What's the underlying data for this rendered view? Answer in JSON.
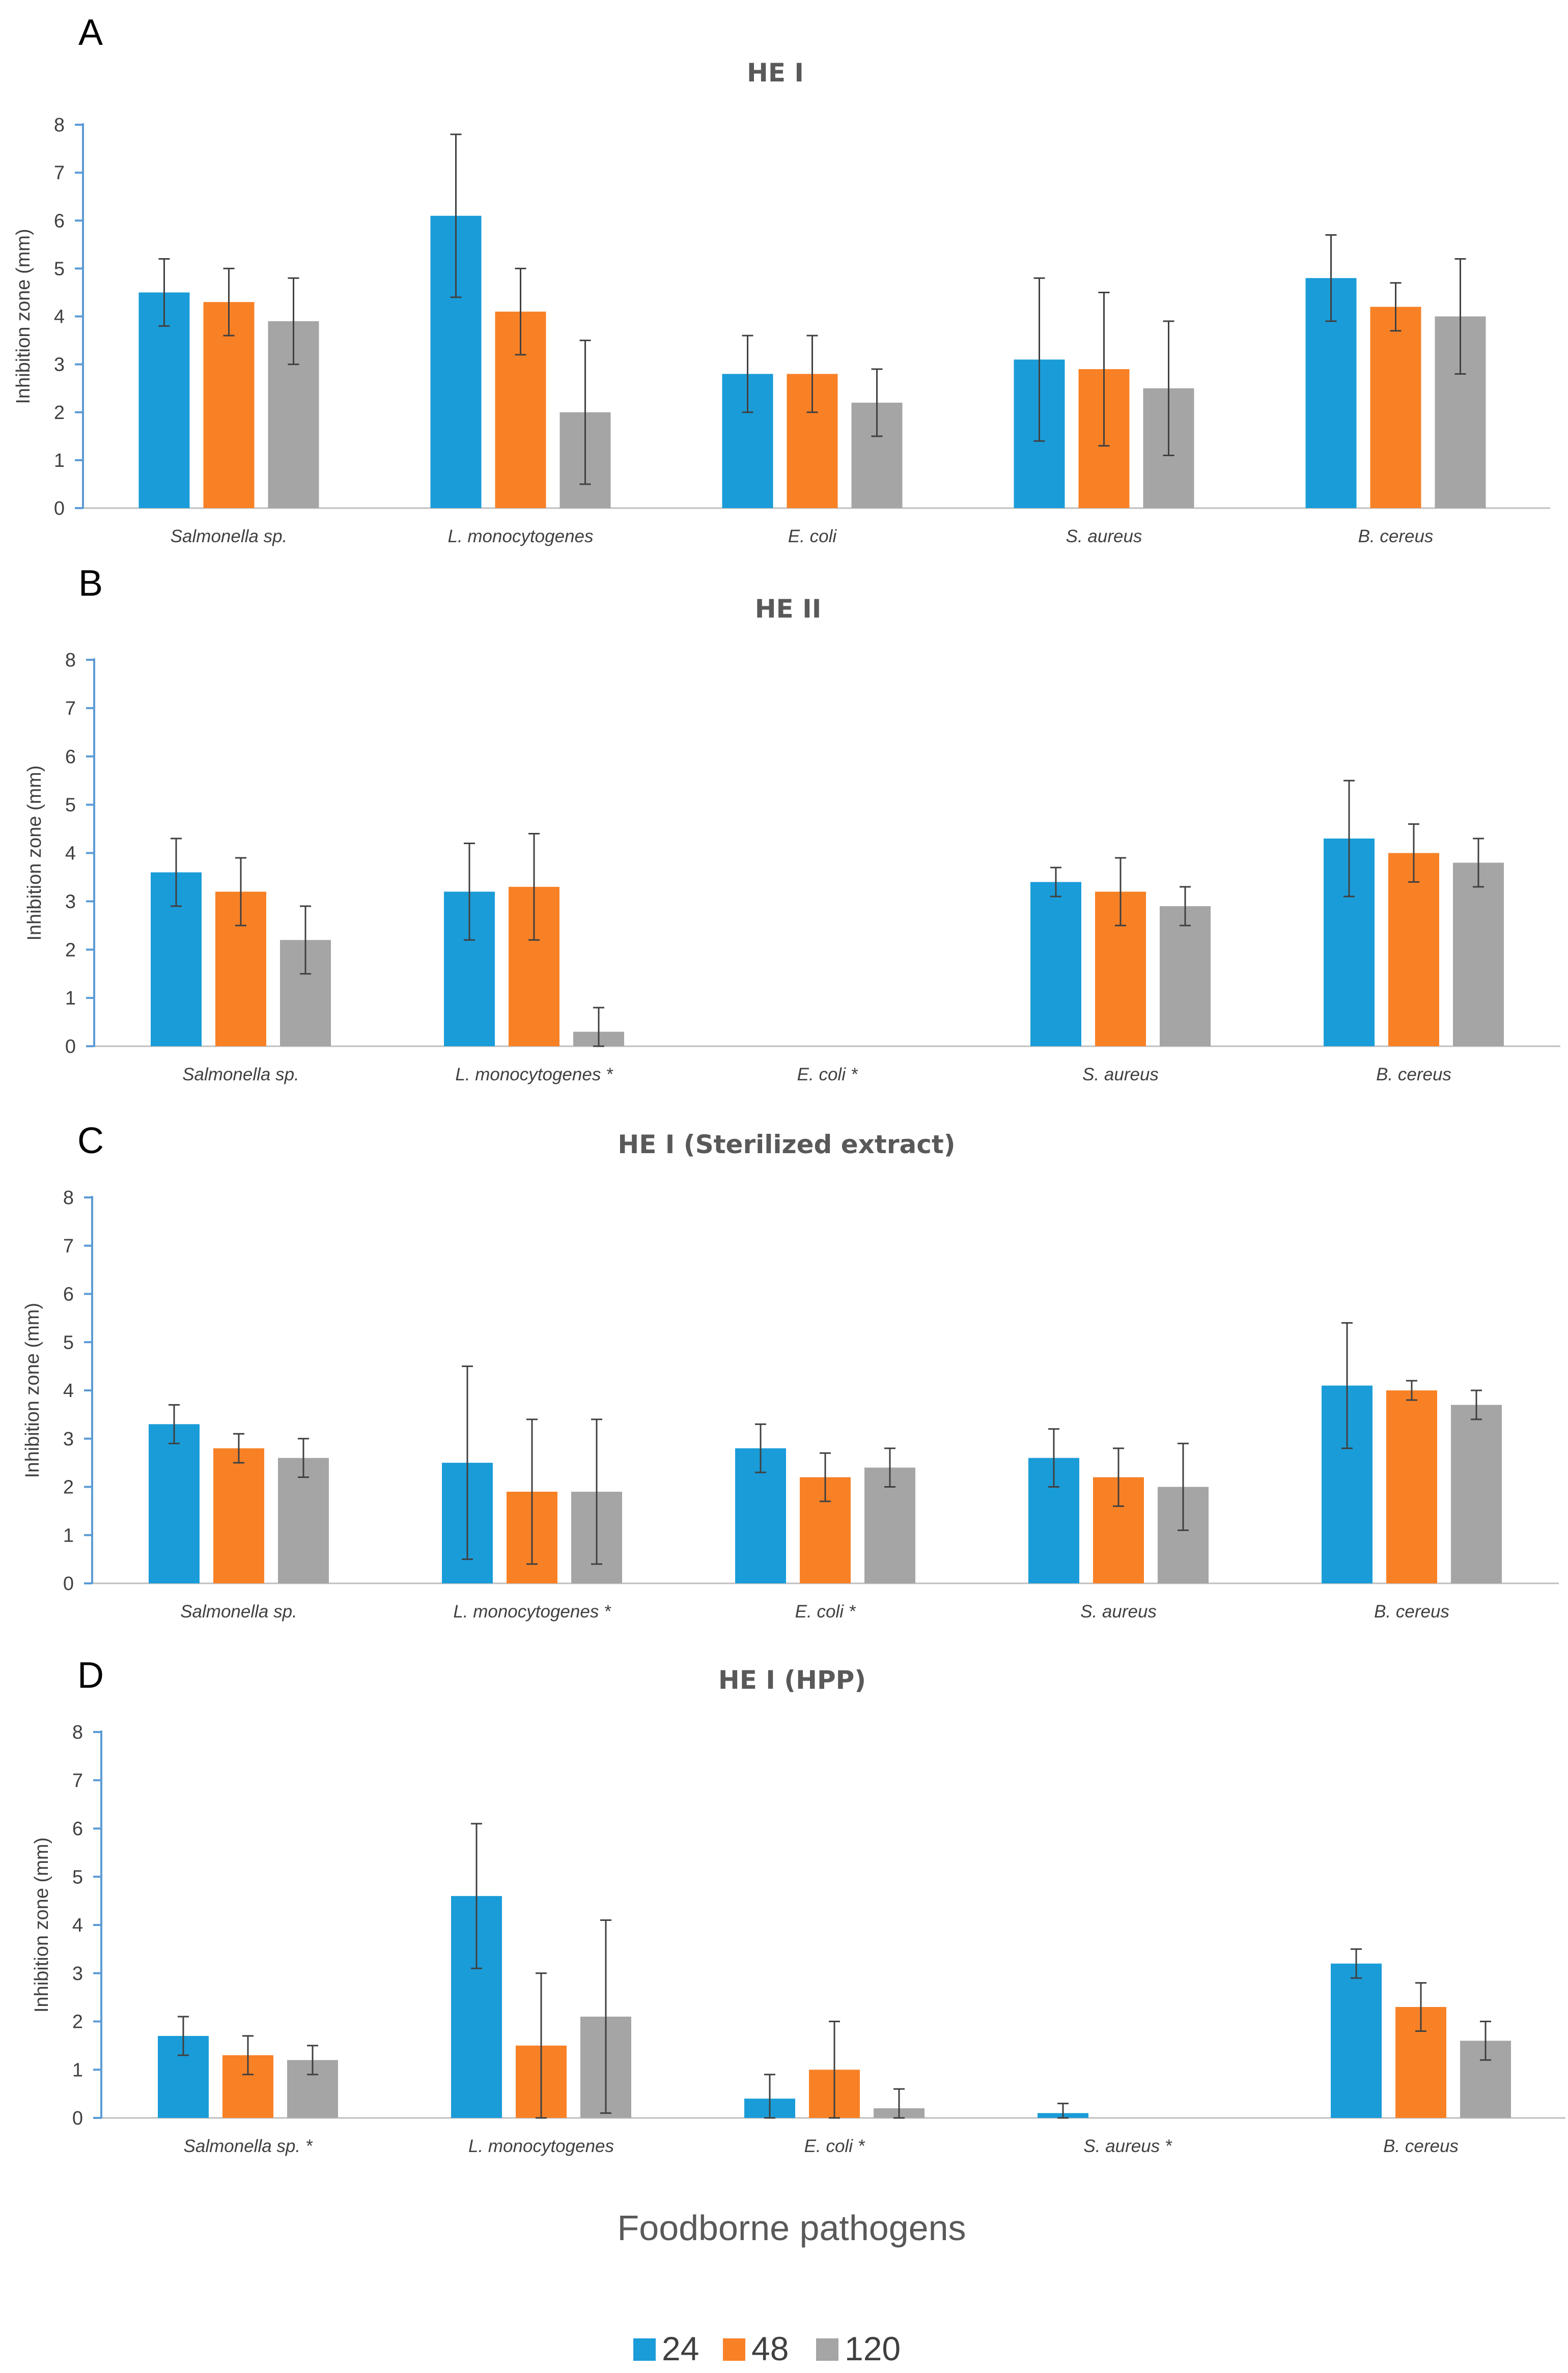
{
  "colors": {
    "s24": "#1a9cd8",
    "s48": "#f88126",
    "s120": "#a5a5a5",
    "axis_y": "#5b9bd5",
    "axis_x": "#bfbfbf",
    "error": "#404040"
  },
  "x_axis_title": "Foodborne pathogens",
  "legend": [
    {
      "label": "24",
      "color": "#1a9cd8"
    },
    {
      "label": "48",
      "color": "#f88126"
    },
    {
      "label": "120",
      "color": "#a5a5a5"
    }
  ],
  "chart_data": [
    {
      "type": "bar",
      "panel": "A",
      "title": "HE I",
      "ylabel": "Inhibition zone (mm)",
      "ylim": [
        0,
        8
      ],
      "yticks": [
        "0",
        "1",
        "2",
        "3",
        "4",
        "5",
        "6",
        "7",
        "8"
      ],
      "categories": [
        "Salmonella sp.",
        "L. monocytogenes",
        "E. coli",
        "S. aureus",
        "B. cereus"
      ],
      "series": [
        {
          "name": "24",
          "values": [
            4.5,
            6.1,
            2.8,
            3.1,
            4.8
          ],
          "errors": [
            0.7,
            1.7,
            0.8,
            1.7,
            0.9
          ]
        },
        {
          "name": "48",
          "values": [
            4.3,
            4.1,
            2.8,
            2.9,
            4.2
          ],
          "errors": [
            0.7,
            0.9,
            0.8,
            1.6,
            0.5
          ]
        },
        {
          "name": "120",
          "values": [
            3.9,
            2.0,
            2.2,
            2.5,
            4.0
          ],
          "errors": [
            0.9,
            1.5,
            0.7,
            1.4,
            1.2
          ]
        }
      ]
    },
    {
      "type": "bar",
      "panel": "B",
      "title": "HE II",
      "ylabel": "Inhibition zone (mm)",
      "ylim": [
        0,
        8
      ],
      "yticks": [
        "0",
        "1",
        "2",
        "3",
        "4",
        "5",
        "6",
        "7",
        "8"
      ],
      "categories": [
        "Salmonella sp.",
        "L. monocytogenes *",
        "E. coli *",
        "S. aureus",
        "B. cereus"
      ],
      "series": [
        {
          "name": "24",
          "values": [
            3.6,
            3.2,
            0,
            3.4,
            4.3
          ],
          "errors": [
            0.7,
            1.0,
            0,
            0.3,
            1.2
          ]
        },
        {
          "name": "48",
          "values": [
            3.2,
            3.3,
            0,
            3.2,
            4.0
          ],
          "errors": [
            0.7,
            1.1,
            0,
            0.7,
            0.6
          ]
        },
        {
          "name": "120",
          "values": [
            2.2,
            0.3,
            0,
            2.9,
            3.8
          ],
          "errors": [
            0.7,
            0.5,
            0,
            0.4,
            0.5
          ]
        }
      ]
    },
    {
      "type": "bar",
      "panel": "C",
      "title": "HE I (Sterilized extract)",
      "ylabel": "Inhibition zone (mm)",
      "ylim": [
        0,
        8
      ],
      "yticks": [
        "0",
        "1",
        "2",
        "3",
        "4",
        "5",
        "6",
        "7",
        "8"
      ],
      "categories": [
        "Salmonella sp.",
        "L. monocytogenes *",
        "E. coli *",
        "S. aureus",
        "B. cereus"
      ],
      "series": [
        {
          "name": "24",
          "values": [
            3.3,
            2.5,
            2.8,
            2.6,
            4.1
          ],
          "errors": [
            0.4,
            2.0,
            0.5,
            0.6,
            1.3
          ]
        },
        {
          "name": "48",
          "values": [
            2.8,
            1.9,
            2.2,
            2.2,
            4.0
          ],
          "errors": [
            0.3,
            1.5,
            0.5,
            0.6,
            0.2
          ]
        },
        {
          "name": "120",
          "values": [
            2.6,
            1.9,
            2.4,
            2.0,
            3.7
          ],
          "errors": [
            0.4,
            1.5,
            0.4,
            0.9,
            0.3
          ]
        }
      ]
    },
    {
      "type": "bar",
      "panel": "D",
      "title": "HE I (HPP)",
      "ylabel": "Inhibition zone (mm)",
      "ylim": [
        0,
        8
      ],
      "yticks": [
        "0",
        "1",
        "2",
        "3",
        "4",
        "5",
        "6",
        "7",
        "8"
      ],
      "categories": [
        "Salmonella sp. *",
        "L. monocytogenes",
        "E. coli *",
        "S. aureus *",
        "B. cereus"
      ],
      "series": [
        {
          "name": "24",
          "values": [
            1.7,
            4.6,
            0.4,
            0.1,
            3.2
          ],
          "errors": [
            0.4,
            1.5,
            0.5,
            0.2,
            0.3
          ]
        },
        {
          "name": "48",
          "values": [
            1.3,
            1.5,
            1.0,
            0,
            2.3
          ],
          "errors": [
            0.4,
            1.5,
            1.0,
            0,
            0.5
          ]
        },
        {
          "name": "120",
          "values": [
            1.2,
            2.1,
            0.2,
            0,
            1.6
          ],
          "errors": [
            0.3,
            2.0,
            0.4,
            0,
            0.4
          ]
        }
      ]
    }
  ]
}
